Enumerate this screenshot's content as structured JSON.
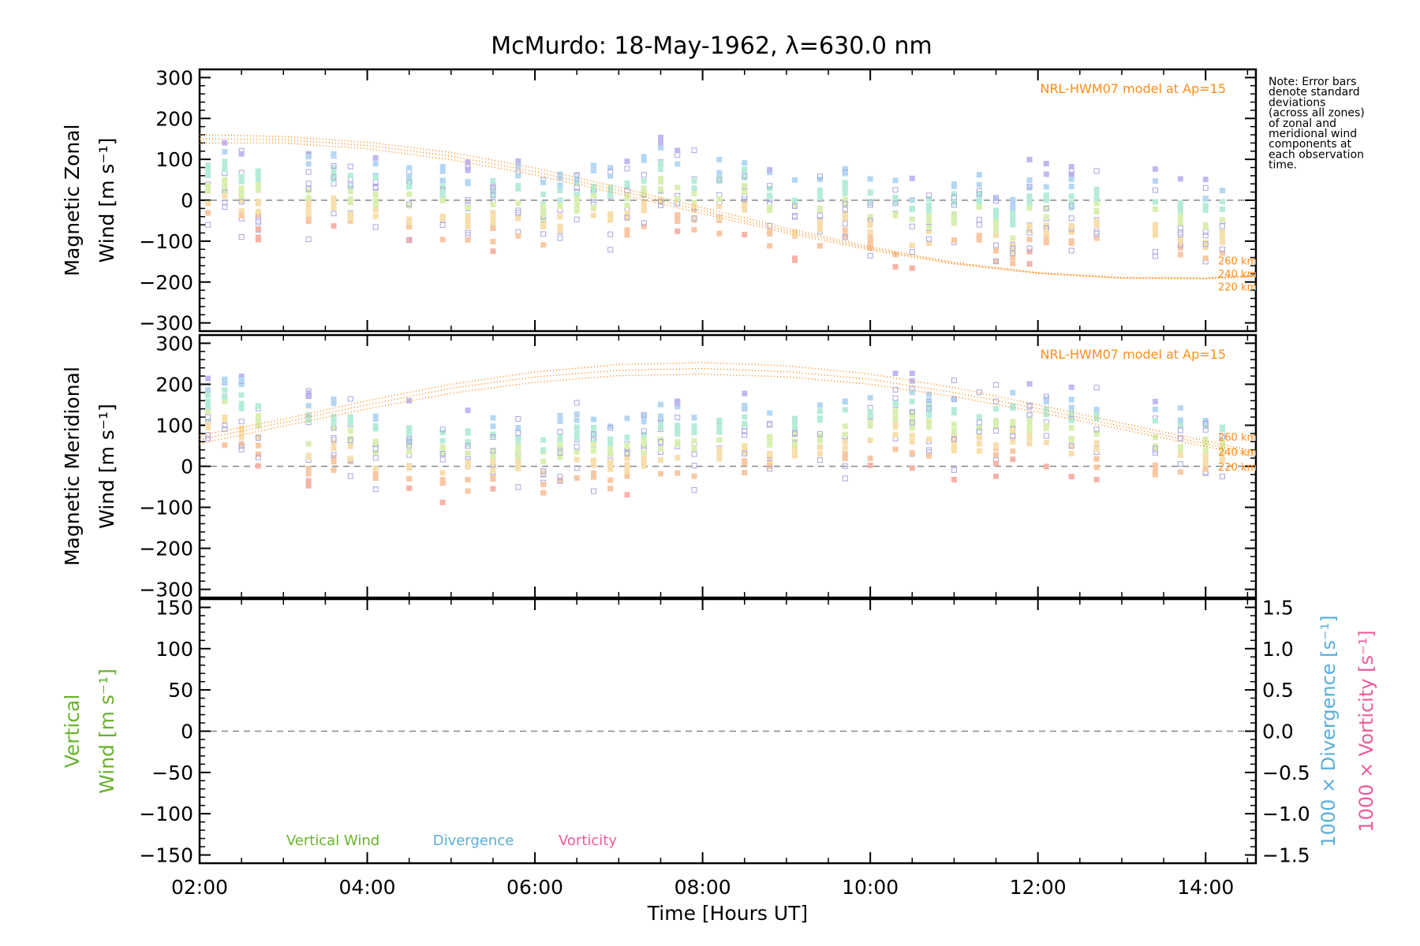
{
  "title": "McMurdo: 18-May-1962, λ=630.0 nm",
  "note": [
    "Note: Error bars",
    "denote standard",
    "deviations",
    "(across all zones)",
    "of zonal and",
    "meridional wind",
    "components at",
    "each observation",
    "time."
  ],
  "colors": {
    "model": "#ff8c1a",
    "vertical": "#6ab32e",
    "divergence": "#5aaed8",
    "vorticity": "#ec5b9a",
    "error_bar": "#a9a6e0",
    "zero_line": "#888888",
    "axis": "#000000"
  },
  "chart_data": [
    {
      "type": "scatter",
      "panel": "zonal",
      "ylabel_lines": [
        "Magnetic Zonal",
        "Wind [m s⁻¹]"
      ],
      "ylim": [
        -320,
        320
      ],
      "yticks": [
        300,
        200,
        100,
        0,
        -100,
        -200,
        -300
      ],
      "xlim": [
        2.0,
        14.6
      ],
      "model_label": "NRL-HWM07 model at Ap=15",
      "model_curves": [
        {
          "name": "260 km",
          "x": [
            2.0,
            3,
            4,
            5,
            6,
            7,
            8,
            9,
            10,
            11,
            12,
            13,
            14,
            14.6
          ],
          "y": [
            160,
            156,
            142,
            117,
            79,
            32,
            -18,
            -68,
            -114,
            -152,
            -177,
            -189,
            -190,
            -184
          ]
        },
        {
          "name": "240 km",
          "x": [
            2.0,
            3,
            4,
            5,
            6,
            7,
            8,
            9,
            10,
            11,
            12,
            13,
            14,
            14.6
          ],
          "y": [
            150,
            148,
            134,
            108,
            70,
            24,
            -26,
            -74,
            -118,
            -154,
            -178,
            -190,
            -191,
            -185
          ]
        },
        {
          "name": "220 km",
          "x": [
            2.0,
            3,
            4,
            5,
            6,
            7,
            8,
            9,
            10,
            11,
            12,
            13,
            14,
            14.6
          ],
          "y": [
            140,
            140,
            126,
            99,
            62,
            16,
            -33,
            -80,
            -122,
            -156,
            -179,
            -191,
            -192,
            -186
          ]
        }
      ],
      "observation_times": [
        2.1,
        2.3,
        2.5,
        2.7,
        3.3,
        3.6,
        3.8,
        4.1,
        4.5,
        4.9,
        5.2,
        5.5,
        5.8,
        6.1,
        6.3,
        6.5,
        6.7,
        6.9,
        7.1,
        7.3,
        7.5,
        7.7,
        7.9,
        8.2,
        8.5,
        8.8,
        9.1,
        9.4,
        9.7,
        10.0,
        10.3,
        10.5,
        10.7,
        11.0,
        11.3,
        11.5,
        11.7,
        11.9,
        12.1,
        12.4,
        12.7,
        13.4,
        13.7,
        14.0,
        14.2
      ],
      "observation_means": [
        30,
        40,
        20,
        25,
        15,
        30,
        10,
        0,
        0,
        -10,
        -20,
        -10,
        0,
        -30,
        -20,
        -10,
        0,
        -10,
        0,
        20,
        40,
        20,
        10,
        10,
        20,
        -20,
        -30,
        -30,
        -10,
        -30,
        -40,
        -60,
        -50,
        -40,
        -30,
        -60,
        -80,
        -30,
        -30,
        -40,
        -20,
        -40,
        -50,
        -60,
        -50
      ]
    },
    {
      "type": "scatter",
      "panel": "meridional",
      "ylabel_lines": [
        "Magnetic Meridional",
        "Wind [m s⁻¹]"
      ],
      "ylim": [
        -320,
        320
      ],
      "yticks": [
        300,
        200,
        100,
        0,
        -100,
        -200,
        -300
      ],
      "xlim": [
        2.0,
        14.6
      ],
      "model_label": "NRL-HWM07 model at Ap=15",
      "model_curves": [
        {
          "name": "260 km",
          "x": [
            2.0,
            3,
            4,
            5,
            6,
            7,
            8,
            9,
            10,
            11,
            12,
            13,
            14,
            14.6
          ],
          "y": [
            75,
            115,
            160,
            200,
            230,
            248,
            253,
            245,
            225,
            192,
            150,
            105,
            62,
            36
          ]
        },
        {
          "name": "240 km",
          "x": [
            2.0,
            3,
            4,
            5,
            6,
            7,
            8,
            9,
            10,
            11,
            12,
            13,
            14,
            14.6
          ],
          "y": [
            65,
            107,
            150,
            190,
            218,
            234,
            238,
            231,
            212,
            180,
            141,
            97,
            55,
            30
          ]
        },
        {
          "name": "220 km",
          "x": [
            2.0,
            3,
            4,
            5,
            6,
            7,
            8,
            9,
            10,
            11,
            12,
            13,
            14,
            14.6
          ],
          "y": [
            55,
            98,
            140,
            178,
            205,
            221,
            225,
            218,
            200,
            170,
            132,
            90,
            48,
            24
          ]
        }
      ],
      "observation_times": [
        2.1,
        2.3,
        2.5,
        2.7,
        3.3,
        3.6,
        3.8,
        4.1,
        4.5,
        4.9,
        5.2,
        5.5,
        5.8,
        6.1,
        6.3,
        6.5,
        6.7,
        6.9,
        7.1,
        7.3,
        7.5,
        7.7,
        7.9,
        8.2,
        8.5,
        8.8,
        9.1,
        9.4,
        9.7,
        10.0,
        10.3,
        10.5,
        10.7,
        11.0,
        11.3,
        11.5,
        11.7,
        11.9,
        12.1,
        12.4,
        12.7,
        13.4,
        13.7,
        14.0,
        14.2
      ],
      "observation_means": [
        120,
        140,
        120,
        110,
        70,
        80,
        70,
        50,
        40,
        30,
        30,
        40,
        30,
        20,
        40,
        50,
        40,
        30,
        40,
        50,
        60,
        60,
        50,
        60,
        70,
        60,
        70,
        80,
        90,
        100,
        120,
        110,
        100,
        90,
        90,
        100,
        110,
        100,
        100,
        80,
        80,
        60,
        50,
        50,
        60
      ]
    },
    {
      "type": "line",
      "panel": "vertical",
      "ylabel_lines": [
        "Vertical",
        "Wind [m s⁻¹]"
      ],
      "ylim": [
        -160,
        160
      ],
      "yticks": [
        150,
        100,
        50,
        0,
        -50,
        -100,
        -150
      ],
      "right_ylim": [
        -1.6,
        1.6
      ],
      "right_yticks": [
        1.5,
        1.0,
        0.5,
        0.0,
        -0.5,
        -1.0,
        -1.5
      ],
      "right_ytick_labels": [
        "1.5",
        "1.0",
        "0.5",
        "0.0",
        "−0.5",
        "−1.0",
        "−1.5"
      ],
      "right_label_divergence": "1000 × Divergence [s⁻¹]",
      "right_label_vorticity": "1000 × Vorticity [s⁻¹]",
      "legend": [
        "Vertical Wind",
        "Divergence",
        "Vorticity"
      ],
      "xlim": [
        2.0,
        14.6
      ],
      "series": []
    }
  ],
  "xaxis": {
    "label": "Time [Hours UT]",
    "ticks": [
      2,
      4,
      6,
      8,
      10,
      12,
      14
    ],
    "tick_labels": [
      "02:00",
      "04:00",
      "06:00",
      "08:00",
      "10:00",
      "12:00",
      "14:00"
    ]
  }
}
